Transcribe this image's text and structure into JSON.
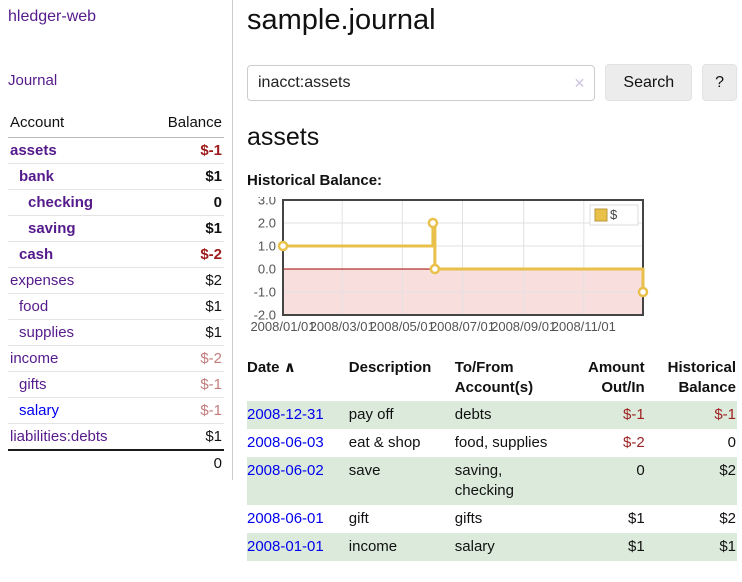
{
  "sidebar": {
    "app_title": "hledger-web",
    "nav": {
      "journal_label": "Journal"
    },
    "accounts_table": {
      "headers": {
        "account": "Account",
        "balance": "Balance"
      },
      "rows": [
        {
          "account": "assets",
          "balance": "$-1",
          "level": 1,
          "bold": true,
          "negative": "strong"
        },
        {
          "account": "bank",
          "balance": "$1",
          "level": 2,
          "bold": true,
          "negative": null
        },
        {
          "account": "checking",
          "balance": "0",
          "level": 3,
          "bold": true,
          "negative": null
        },
        {
          "account": "saving",
          "balance": "$1",
          "level": 3,
          "bold": true,
          "negative": null
        },
        {
          "account": "cash",
          "balance": "$-2",
          "level": 2,
          "bold": true,
          "negative": "strong"
        },
        {
          "account": "expenses",
          "balance": "$2",
          "level": 1,
          "bold": false,
          "negative": null
        },
        {
          "account": "food",
          "balance": "$1",
          "level": 2,
          "bold": false,
          "negative": null
        },
        {
          "account": "supplies",
          "balance": "$1",
          "level": 2,
          "bold": false,
          "negative": null
        },
        {
          "account": "income",
          "balance": "$-2",
          "level": 1,
          "bold": false,
          "negative": "light"
        },
        {
          "account": "gifts",
          "balance": "$-1",
          "level": 2,
          "bold": false,
          "negative": "light"
        },
        {
          "account": "salary",
          "balance": "$-1",
          "level": 2,
          "bold": false,
          "negative": "light",
          "unvisited": true
        },
        {
          "account": "liabilities:debts",
          "balance": "$1",
          "level": 1,
          "bold": false,
          "negative": null
        }
      ],
      "total": "0"
    }
  },
  "header": {
    "title": "sample.journal"
  },
  "search": {
    "value": "inacct:assets",
    "clear_icon": "✕",
    "search_button": "Search",
    "help_button": "?"
  },
  "account_page": {
    "title": "assets",
    "chart_label": "Historical Balance:"
  },
  "chart_data": {
    "type": "line",
    "steps": true,
    "title": "Historical Balance:",
    "series": [
      {
        "name": "$",
        "color": "#e8c04a",
        "points": [
          [
            "2008/01/01",
            1.0
          ],
          [
            "2008/06/01",
            2.0
          ],
          [
            "2008/06/03",
            0.0
          ],
          [
            "2008/12/31",
            -1.0
          ]
        ]
      }
    ],
    "xticks": [
      "2008/01/01",
      "2008/03/01",
      "2008/05/01",
      "2008/07/01",
      "2008/09/01",
      "2008/11/01"
    ],
    "yticks": [
      3.0,
      2.0,
      1.0,
      0.0,
      -1.0,
      -2.0
    ],
    "ylim": [
      -2.0,
      3.0
    ],
    "xlim": [
      "2008/01/01",
      "2008/12/31"
    ],
    "grid": true,
    "legend_position": "top-right",
    "colors": {
      "line": "#e8c04a",
      "point_fill": "#ffffff",
      "negative_region": "#f9dede",
      "zero_line": "#a40000",
      "gridline": "#e2e2e2",
      "plot_border": "#454545",
      "axis_text": "#545454"
    }
  },
  "register": {
    "headers": {
      "date": "Date",
      "sort_icon": "∧",
      "description": "Description",
      "tofrom": "To/From Account(s)",
      "amount": "Amount Out/In",
      "balance": "Historical Balance"
    },
    "rows": [
      {
        "date": "2008-12-31",
        "description": "pay off",
        "accounts": "debts",
        "amount": "$-1",
        "amount_neg": true,
        "balance": "$-1",
        "balance_neg": true
      },
      {
        "date": "2008-06-03",
        "description": "eat & shop",
        "accounts": "food, supplies",
        "amount": "$-2",
        "amount_neg": true,
        "balance": "0",
        "balance_neg": false
      },
      {
        "date": "2008-06-02",
        "description": "save",
        "accounts": "saving, checking",
        "amount": "0",
        "amount_neg": false,
        "balance": "$2",
        "balance_neg": false
      },
      {
        "date": "2008-06-01",
        "description": "gift",
        "accounts": "gifts",
        "amount": "$1",
        "amount_neg": false,
        "balance": "$2",
        "balance_neg": false
      },
      {
        "date": "2008-01-01",
        "description": "income",
        "accounts": "salary",
        "amount": "$1",
        "amount_neg": false,
        "balance": "$1",
        "balance_neg": false
      }
    ]
  }
}
